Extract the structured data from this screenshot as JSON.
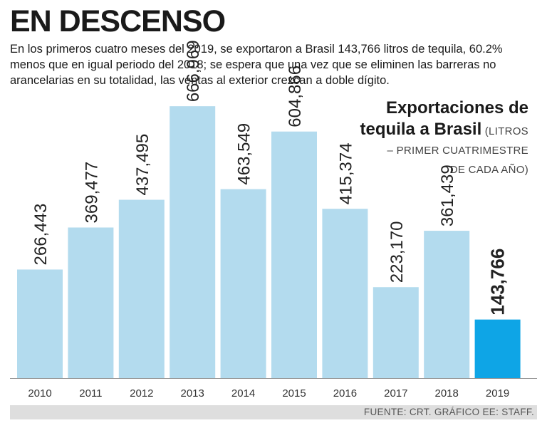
{
  "headline": "EN DESCENSO",
  "subtitle": "En los primeros cuatro meses del 2019, se exportaron a Brasil 143,766 litros de tequila, 60.2% menos que en igual periodo del 2018; se espera que una vez que se eliminen las barreras no arancelarias en su totalidad, las ventas al exterior crezcan a doble dígito.",
  "source": "FUENTE: CRT. GRÁFICO EE: STAFF.",
  "colors": {
    "bar": "#b3dbee",
    "highlight": "#0ea5e6",
    "axis": "#9a9a9a"
  },
  "chart_data": {
    "type": "bar",
    "title_line1": "Exportaciones de",
    "title_line2": "tequila a Brasil",
    "title_note_line2": "(LITROS",
    "title_note_line3": "– PRIMER CUATRIMESTRE",
    "title_note_line4": "DE CADA AÑO)",
    "categories": [
      "2010",
      "2011",
      "2012",
      "2013",
      "2014",
      "2015",
      "2016",
      "2017",
      "2018",
      "2019"
    ],
    "values": [
      266443,
      369477,
      437495,
      666969,
      463549,
      604866,
      415374,
      223170,
      361439,
      143766
    ],
    "value_labels": [
      "266,443",
      "369,477",
      "437,495",
      "666,969",
      "463,549",
      "604,866",
      "415,374",
      "223,170",
      "361,439",
      "143,766"
    ],
    "highlight_index": 9,
    "ylim": [
      0,
      800000
    ],
    "grid": false
  }
}
